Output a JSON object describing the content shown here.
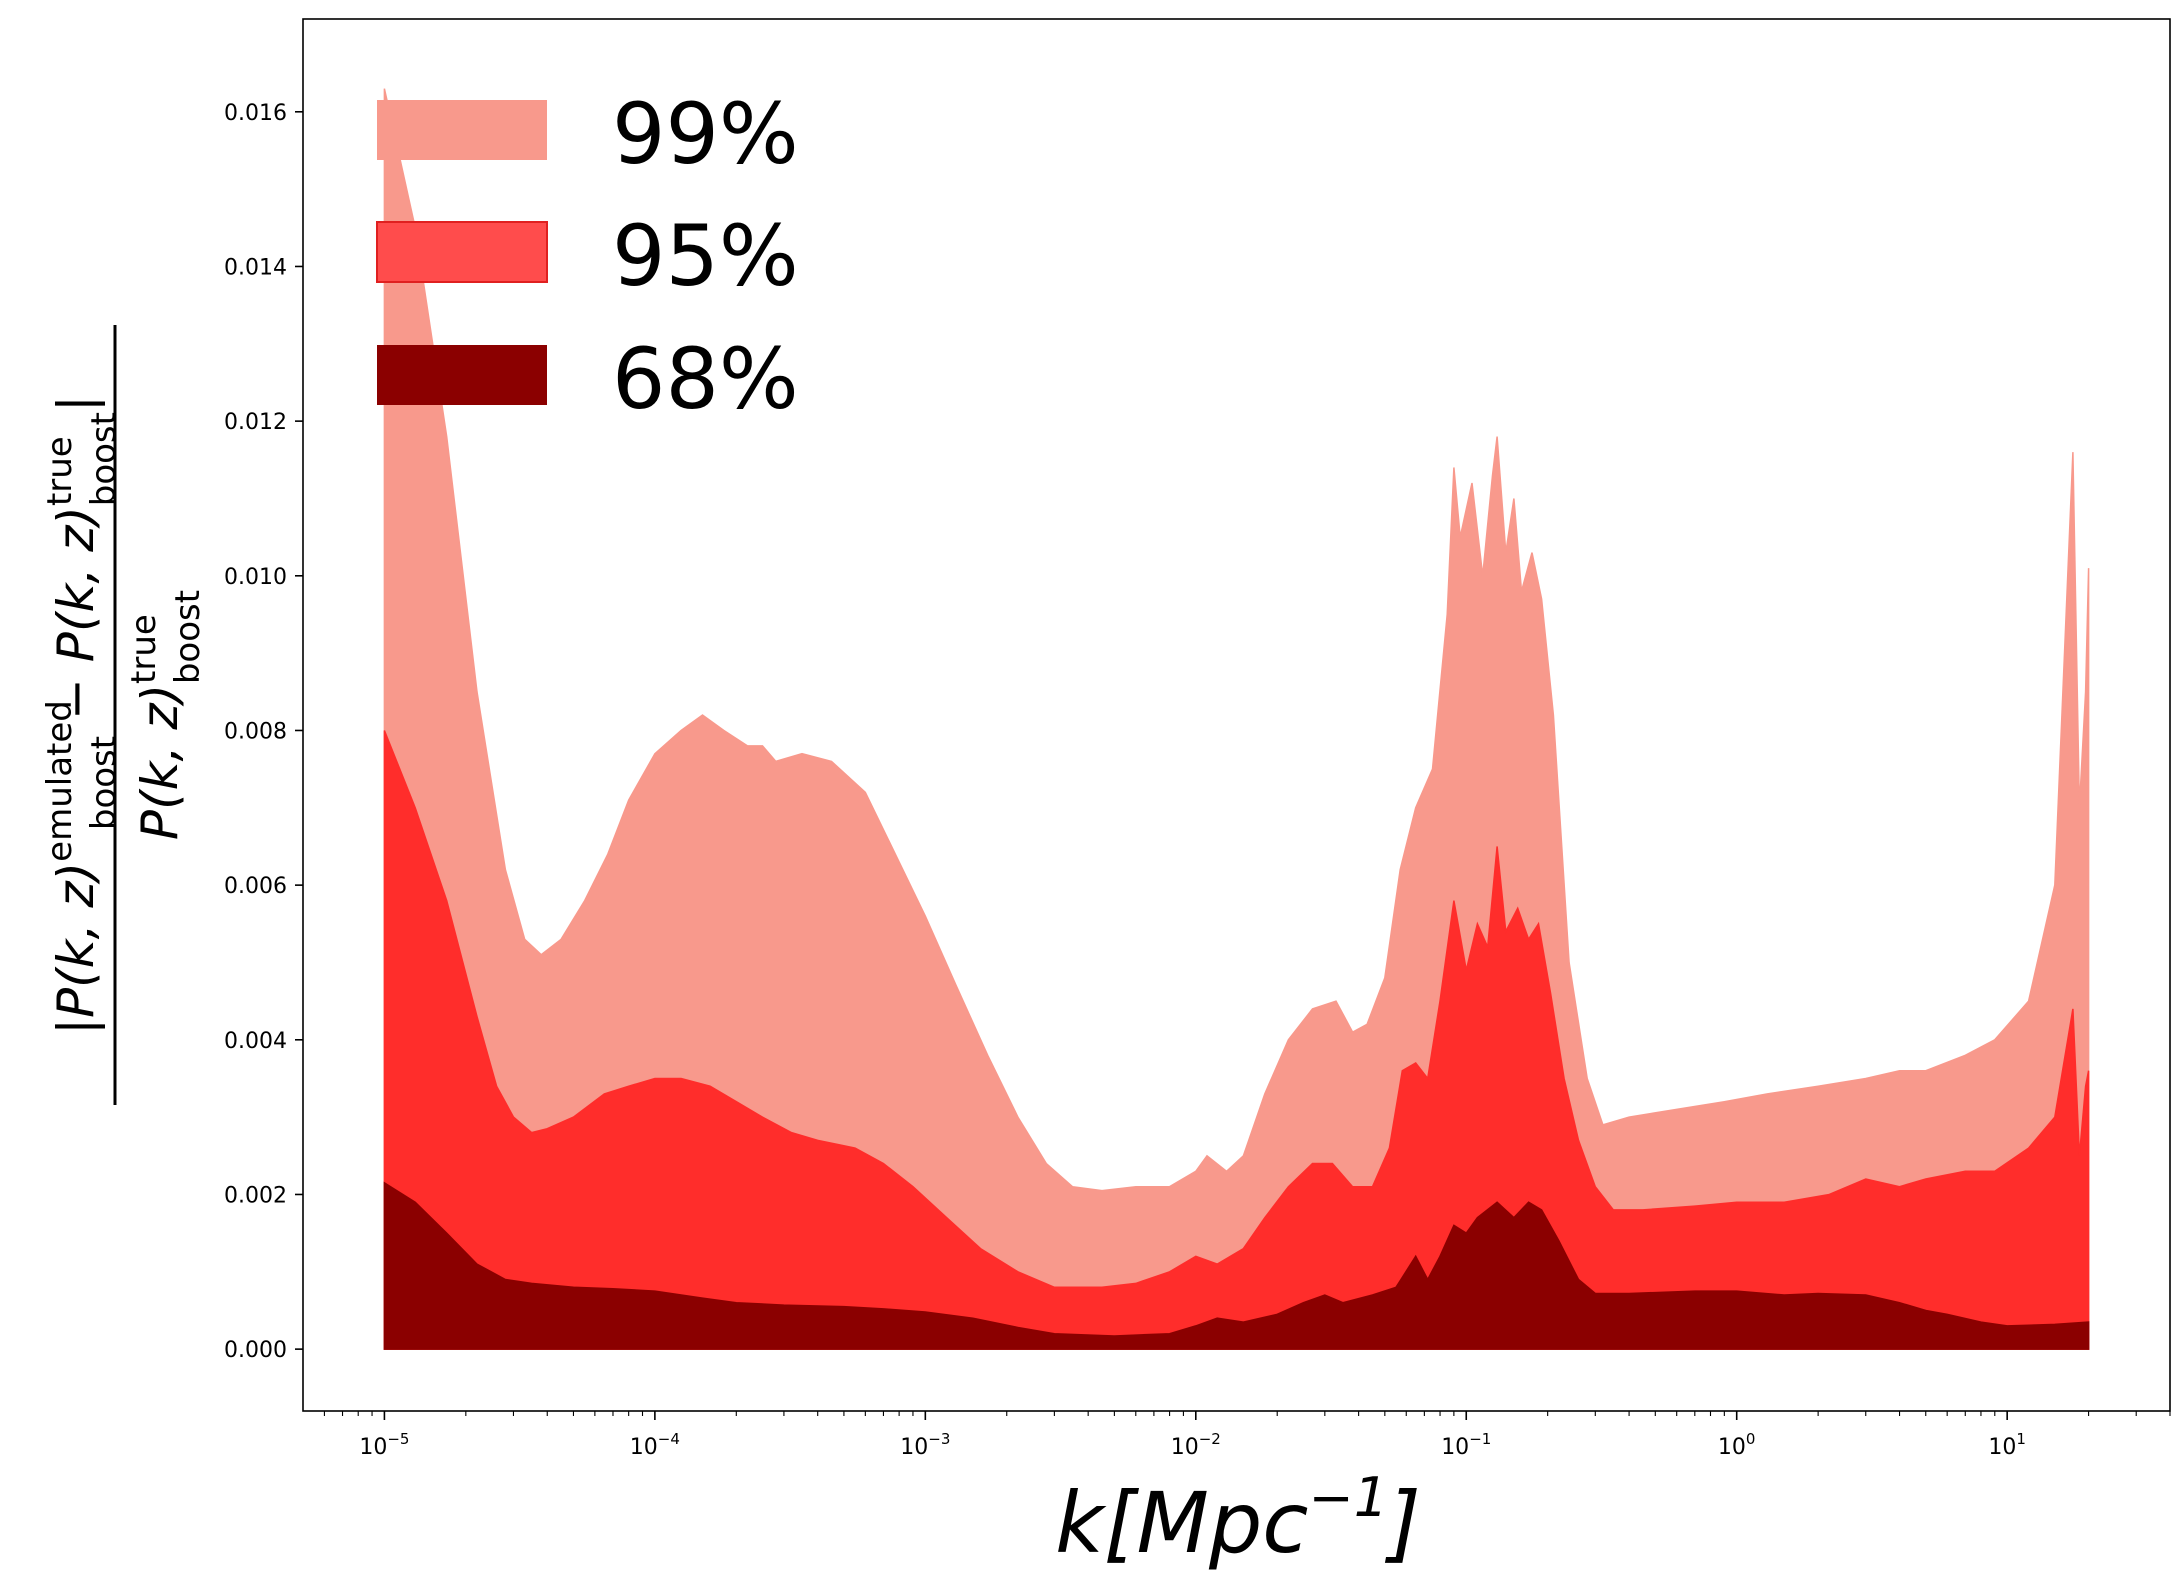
{
  "chart_data": {
    "type": "area",
    "xscale": "log",
    "xlim": [
      5e-06,
      40
    ],
    "ylim": [
      -0.0008,
      0.0172
    ],
    "grid": false,
    "legend_position": "top-left",
    "xlabel": {
      "base": "k[Mpc",
      "exp": "−1",
      "close": "]"
    },
    "ylabel": {
      "numerator_text": "|P(k, z)",
      "numerator_sup": "emulated",
      "numerator_sub": "boost",
      "minus": " − P(k, z)",
      "numerator_sup2": "true",
      "numerator_sub2": "boost",
      "close": "|",
      "denominator_text": "P(k, z)",
      "denominator_sup": "true",
      "denominator_sub": "boost"
    },
    "x_ticks": [
      {
        "value": 1e-05,
        "base": "10",
        "exp": "−5"
      },
      {
        "value": 0.0001,
        "base": "10",
        "exp": "−4"
      },
      {
        "value": 0.001,
        "base": "10",
        "exp": "−3"
      },
      {
        "value": 0.01,
        "base": "10",
        "exp": "−2"
      },
      {
        "value": 0.1,
        "base": "10",
        "exp": "−1"
      },
      {
        "value": 1,
        "base": "10",
        "exp": "0"
      },
      {
        "value": 10,
        "base": "10",
        "exp": "1"
      }
    ],
    "y_ticks": [
      {
        "value": 0.0,
        "label": "0.000"
      },
      {
        "value": 0.002,
        "label": "0.002"
      },
      {
        "value": 0.004,
        "label": "0.004"
      },
      {
        "value": 0.006,
        "label": "0.006"
      },
      {
        "value": 0.008,
        "label": "0.008"
      },
      {
        "value": 0.01,
        "label": "0.010"
      },
      {
        "value": 0.012,
        "label": "0.012"
      },
      {
        "value": 0.014,
        "label": "0.014"
      },
      {
        "value": 0.016,
        "label": "0.016"
      }
    ],
    "series": [
      {
        "name": "99%",
        "color": "#f8998c",
        "points": [
          [
            1e-05,
            0.0163
          ],
          [
            1.3e-05,
            0.0145
          ],
          [
            1.7e-05,
            0.0118
          ],
          [
            2.2e-05,
            0.0085
          ],
          [
            2.8e-05,
            0.0062
          ],
          [
            3.3e-05,
            0.0053
          ],
          [
            3.8e-05,
            0.0051
          ],
          [
            4.5e-05,
            0.0053
          ],
          [
            5.5e-05,
            0.0058
          ],
          [
            6.7e-05,
            0.0064
          ],
          [
            8e-05,
            0.0071
          ],
          [
            0.0001,
            0.0077
          ],
          [
            0.000125,
            0.008
          ],
          [
            0.00015,
            0.0082
          ],
          [
            0.00018,
            0.008
          ],
          [
            0.00022,
            0.0078
          ],
          [
            0.00025,
            0.0078
          ],
          [
            0.00028,
            0.0076
          ],
          [
            0.00035,
            0.0077
          ],
          [
            0.00045,
            0.0076
          ],
          [
            0.0006,
            0.0072
          ],
          [
            0.0008,
            0.0063
          ],
          [
            0.001,
            0.0056
          ],
          [
            0.0013,
            0.0047
          ],
          [
            0.0017,
            0.0038
          ],
          [
            0.0022,
            0.003
          ],
          [
            0.0028,
            0.0024
          ],
          [
            0.0035,
            0.0021
          ],
          [
            0.0045,
            0.00205
          ],
          [
            0.006,
            0.0021
          ],
          [
            0.008,
            0.0021
          ],
          [
            0.01,
            0.0023
          ],
          [
            0.011,
            0.0025
          ],
          [
            0.013,
            0.0023
          ],
          [
            0.015,
            0.0025
          ],
          [
            0.018,
            0.0033
          ],
          [
            0.022,
            0.004
          ],
          [
            0.027,
            0.0044
          ],
          [
            0.033,
            0.0045
          ],
          [
            0.038,
            0.0041
          ],
          [
            0.043,
            0.0042
          ],
          [
            0.05,
            0.0048
          ],
          [
            0.057,
            0.0062
          ],
          [
            0.065,
            0.007
          ],
          [
            0.075,
            0.0075
          ],
          [
            0.085,
            0.0095
          ],
          [
            0.09,
            0.0114
          ],
          [
            0.095,
            0.0105
          ],
          [
            0.105,
            0.0112
          ],
          [
            0.115,
            0.01
          ],
          [
            0.125,
            0.0113
          ],
          [
            0.13,
            0.0118
          ],
          [
            0.14,
            0.0103
          ],
          [
            0.15,
            0.011
          ],
          [
            0.16,
            0.0098
          ],
          [
            0.175,
            0.0103
          ],
          [
            0.19,
            0.0097
          ],
          [
            0.21,
            0.0082
          ],
          [
            0.24,
            0.005
          ],
          [
            0.28,
            0.0035
          ],
          [
            0.32,
            0.0029
          ],
          [
            0.4,
            0.003
          ],
          [
            0.6,
            0.0031
          ],
          [
            0.9,
            0.0032
          ],
          [
            1.3,
            0.0033
          ],
          [
            2,
            0.0034
          ],
          [
            3,
            0.0035
          ],
          [
            4,
            0.0036
          ],
          [
            5,
            0.0036
          ],
          [
            7,
            0.0038
          ],
          [
            9,
            0.004
          ],
          [
            12,
            0.0045
          ],
          [
            15,
            0.006
          ],
          [
            17.5,
            0.0116
          ],
          [
            18.5,
            0.007
          ],
          [
            19.5,
            0.0085
          ],
          [
            20,
            0.0101
          ]
        ]
      },
      {
        "name": "95%",
        "color": "#ff2d2b",
        "points": [
          [
            1e-05,
            0.008
          ],
          [
            1.3e-05,
            0.007
          ],
          [
            1.7e-05,
            0.0058
          ],
          [
            2.2e-05,
            0.0043
          ],
          [
            2.6e-05,
            0.0034
          ],
          [
            3e-05,
            0.003
          ],
          [
            3.5e-05,
            0.0028
          ],
          [
            4e-05,
            0.00285
          ],
          [
            5e-05,
            0.003
          ],
          [
            6.5e-05,
            0.0033
          ],
          [
            8e-05,
            0.0034
          ],
          [
            0.0001,
            0.0035
          ],
          [
            0.000125,
            0.0035
          ],
          [
            0.00016,
            0.0034
          ],
          [
            0.0002,
            0.0032
          ],
          [
            0.00025,
            0.003
          ],
          [
            0.00032,
            0.0028
          ],
          [
            0.0004,
            0.0027
          ],
          [
            0.00055,
            0.0026
          ],
          [
            0.0007,
            0.0024
          ],
          [
            0.0009,
            0.0021
          ],
          [
            0.0012,
            0.0017
          ],
          [
            0.0016,
            0.0013
          ],
          [
            0.0022,
            0.001
          ],
          [
            0.003,
            0.0008
          ],
          [
            0.0045,
            0.0008
          ],
          [
            0.006,
            0.00085
          ],
          [
            0.008,
            0.001
          ],
          [
            0.01,
            0.0012
          ],
          [
            0.012,
            0.0011
          ],
          [
            0.015,
            0.0013
          ],
          [
            0.018,
            0.0017
          ],
          [
            0.022,
            0.0021
          ],
          [
            0.027,
            0.0024
          ],
          [
            0.032,
            0.0024
          ],
          [
            0.038,
            0.0021
          ],
          [
            0.045,
            0.0021
          ],
          [
            0.052,
            0.0026
          ],
          [
            0.058,
            0.0036
          ],
          [
            0.065,
            0.0037
          ],
          [
            0.072,
            0.0035
          ],
          [
            0.08,
            0.0045
          ],
          [
            0.09,
            0.0058
          ],
          [
            0.1,
            0.0049
          ],
          [
            0.11,
            0.0055
          ],
          [
            0.12,
            0.0052
          ],
          [
            0.13,
            0.0065
          ],
          [
            0.14,
            0.0054
          ],
          [
            0.155,
            0.0057
          ],
          [
            0.17,
            0.0053
          ],
          [
            0.185,
            0.0055
          ],
          [
            0.205,
            0.0046
          ],
          [
            0.23,
            0.0035
          ],
          [
            0.26,
            0.0027
          ],
          [
            0.3,
            0.0021
          ],
          [
            0.35,
            0.0018
          ],
          [
            0.45,
            0.0018
          ],
          [
            0.7,
            0.00185
          ],
          [
            1,
            0.0019
          ],
          [
            1.5,
            0.0019
          ],
          [
            2.2,
            0.002
          ],
          [
            3,
            0.0022
          ],
          [
            4,
            0.0021
          ],
          [
            5,
            0.0022
          ],
          [
            7,
            0.0023
          ],
          [
            9,
            0.0023
          ],
          [
            12,
            0.0026
          ],
          [
            15,
            0.003
          ],
          [
            17.5,
            0.0044
          ],
          [
            18.5,
            0.0025
          ],
          [
            19.5,
            0.0034
          ],
          [
            20,
            0.0036
          ]
        ]
      },
      {
        "name": "68%",
        "color": "#8b0000",
        "points": [
          [
            1e-05,
            0.00215
          ],
          [
            1.3e-05,
            0.0019
          ],
          [
            1.7e-05,
            0.0015
          ],
          [
            2.2e-05,
            0.0011
          ],
          [
            2.8e-05,
            0.0009
          ],
          [
            3.5e-05,
            0.00085
          ],
          [
            5e-05,
            0.0008
          ],
          [
            7e-05,
            0.00078
          ],
          [
            0.0001,
            0.00075
          ],
          [
            0.00015,
            0.00066
          ],
          [
            0.0002,
            0.0006
          ],
          [
            0.0003,
            0.00057
          ],
          [
            0.0005,
            0.00055
          ],
          [
            0.0007,
            0.00052
          ],
          [
            0.001,
            0.00048
          ],
          [
            0.0015,
            0.0004
          ],
          [
            0.0022,
            0.00028
          ],
          [
            0.003,
            0.0002
          ],
          [
            0.005,
            0.00017
          ],
          [
            0.008,
            0.0002
          ],
          [
            0.01,
            0.0003
          ],
          [
            0.012,
            0.0004
          ],
          [
            0.015,
            0.00035
          ],
          [
            0.02,
            0.00045
          ],
          [
            0.025,
            0.0006
          ],
          [
            0.03,
            0.0007
          ],
          [
            0.035,
            0.0006
          ],
          [
            0.045,
            0.0007
          ],
          [
            0.055,
            0.0008
          ],
          [
            0.065,
            0.0012
          ],
          [
            0.072,
            0.0009
          ],
          [
            0.08,
            0.0012
          ],
          [
            0.09,
            0.0016
          ],
          [
            0.1,
            0.0015
          ],
          [
            0.11,
            0.0017
          ],
          [
            0.13,
            0.0019
          ],
          [
            0.15,
            0.0017
          ],
          [
            0.17,
            0.0019
          ],
          [
            0.19,
            0.0018
          ],
          [
            0.22,
            0.0014
          ],
          [
            0.26,
            0.0009
          ],
          [
            0.3,
            0.00072
          ],
          [
            0.4,
            0.00072
          ],
          [
            0.7,
            0.00075
          ],
          [
            1,
            0.00075
          ],
          [
            1.5,
            0.0007
          ],
          [
            2,
            0.00072
          ],
          [
            3,
            0.0007
          ],
          [
            4,
            0.0006
          ],
          [
            5,
            0.0005
          ],
          [
            6,
            0.00045
          ],
          [
            8,
            0.00035
          ],
          [
            10,
            0.0003
          ],
          [
            15,
            0.00032
          ],
          [
            20,
            0.00035
          ]
        ]
      }
    ],
    "legend": [
      {
        "label": "99%",
        "color": "#f8998c"
      },
      {
        "label": "95%",
        "color": "#ff4c4c"
      },
      {
        "label": "68%",
        "color": "#8b0000"
      }
    ]
  }
}
